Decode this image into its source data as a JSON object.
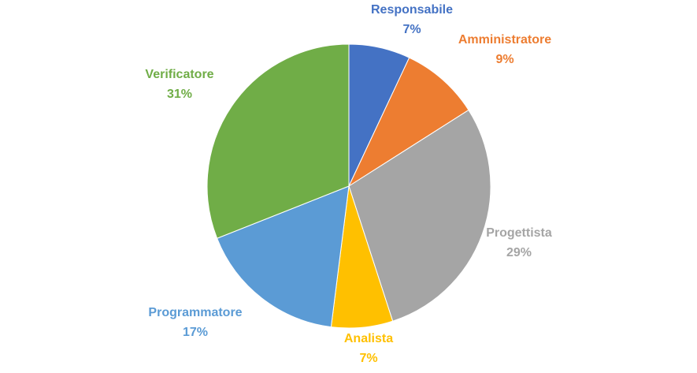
{
  "chart_data": {
    "type": "pie",
    "title": "",
    "start_angle_deg": 0,
    "direction": "clockwise",
    "slices": [
      {
        "label": "Responsabile",
        "value": 7,
        "value_label": "7%",
        "color": "#4472C4"
      },
      {
        "label": "Amministratore",
        "value": 9,
        "value_label": "9%",
        "color": "#ED7D31"
      },
      {
        "label": "Progettista",
        "value": 29,
        "value_label": "29%",
        "color": "#A5A5A5"
      },
      {
        "label": "Analista",
        "value": 7,
        "value_label": "7%",
        "color": "#FFC000"
      },
      {
        "label": "Programmatore",
        "value": 17,
        "value_label": "17%",
        "color": "#5B9BD5"
      },
      {
        "label": "Verificatore",
        "value": 31,
        "value_label": "31%",
        "color": "#70AD47"
      }
    ],
    "legend": "none",
    "data_labels": "outside"
  }
}
